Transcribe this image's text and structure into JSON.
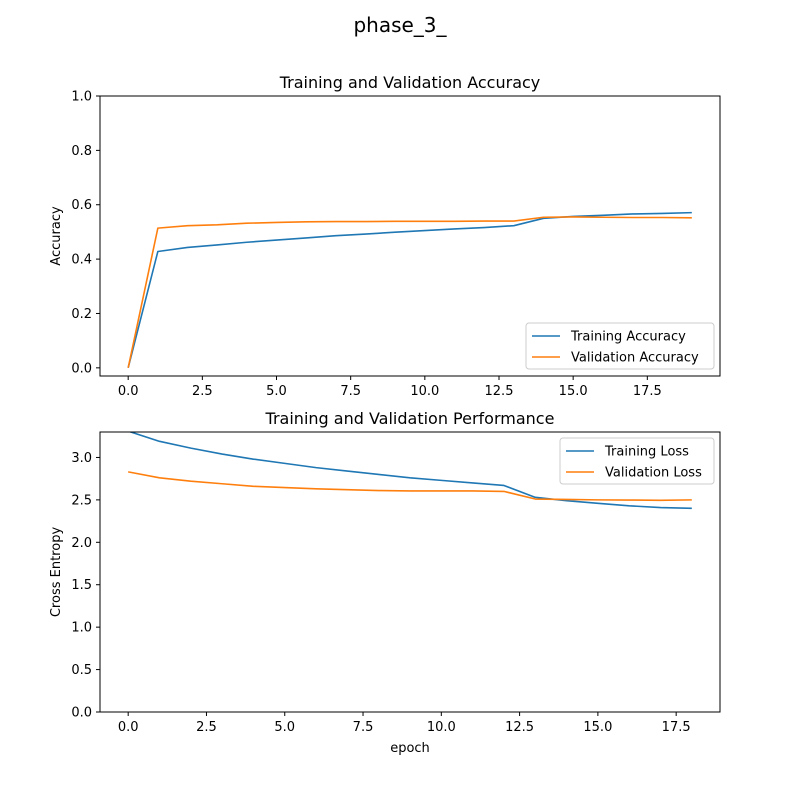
{
  "figure_title": "phase_3_",
  "colors": {
    "series_1": "#1f77b4",
    "series_2": "#ff7f0e"
  },
  "chart_data": [
    {
      "type": "line",
      "title": "Training and Validation Accuracy",
      "xlabel": "",
      "ylabel": "Accuracy",
      "xlim": [
        -0.95,
        19.95
      ],
      "ylim": [
        -0.03,
        1.0
      ],
      "xticks": [
        0.0,
        2.5,
        5.0,
        7.5,
        10.0,
        12.5,
        15.0,
        17.5
      ],
      "xtick_labels": [
        "0.0",
        "2.5",
        "5.0",
        "7.5",
        "10.0",
        "12.5",
        "15.0",
        "17.5"
      ],
      "yticks": [
        0.0,
        0.2,
        0.4,
        0.6,
        0.8,
        1.0
      ],
      "ytick_labels": [
        "0.0",
        "0.2",
        "0.4",
        "0.6",
        "0.8",
        "1.0"
      ],
      "legend": "lower-right",
      "x": [
        0,
        1,
        2,
        3,
        4,
        5,
        6,
        7,
        8,
        9,
        10,
        11,
        12,
        13,
        14,
        15,
        16,
        17,
        18,
        19
      ],
      "series": [
        {
          "name": "Training Accuracy",
          "color": "#1f77b4",
          "values": [
            0.0,
            0.428,
            0.443,
            0.452,
            0.462,
            0.47,
            0.478,
            0.486,
            0.492,
            0.499,
            0.505,
            0.511,
            0.516,
            0.523,
            0.55,
            0.557,
            0.561,
            0.566,
            0.568,
            0.571
          ]
        },
        {
          "name": "Validation Accuracy",
          "color": "#ff7f0e",
          "values": [
            0.0,
            0.514,
            0.523,
            0.526,
            0.532,
            0.535,
            0.537,
            0.538,
            0.538,
            0.539,
            0.539,
            0.539,
            0.54,
            0.54,
            0.554,
            0.555,
            0.554,
            0.553,
            0.553,
            0.552
          ]
        }
      ]
    },
    {
      "type": "line",
      "title": "Training and Validation Performance",
      "xlabel": "epoch",
      "ylabel": "Cross Entropy",
      "xlim": [
        -0.9,
        18.9
      ],
      "ylim": [
        0.0,
        3.3
      ],
      "xticks": [
        0.0,
        2.5,
        5.0,
        7.5,
        10.0,
        12.5,
        15.0,
        17.5
      ],
      "xtick_labels": [
        "0.0",
        "2.5",
        "5.0",
        "7.5",
        "10.0",
        "12.5",
        "15.0",
        "17.5"
      ],
      "yticks": [
        0.0,
        0.5,
        1.0,
        1.5,
        2.0,
        2.5,
        3.0
      ],
      "ytick_labels": [
        "0.0",
        "0.5",
        "1.0",
        "1.5",
        "2.0",
        "2.5",
        "3.0"
      ],
      "legend": "upper-right",
      "x": [
        0,
        1,
        2,
        3,
        4,
        5,
        6,
        7,
        8,
        9,
        10,
        11,
        12,
        13,
        14,
        15,
        16,
        17,
        18
      ],
      "series": [
        {
          "name": "Training Loss",
          "color": "#1f77b4",
          "values": [
            3.31,
            3.19,
            3.11,
            3.04,
            2.98,
            2.93,
            2.88,
            2.84,
            2.8,
            2.76,
            2.73,
            2.7,
            2.67,
            2.53,
            2.49,
            2.46,
            2.43,
            2.41,
            2.4
          ]
        },
        {
          "name": "Validation Loss",
          "color": "#ff7f0e",
          "values": [
            2.83,
            2.76,
            2.72,
            2.69,
            2.66,
            2.645,
            2.63,
            2.62,
            2.61,
            2.605,
            2.605,
            2.605,
            2.6,
            2.51,
            2.505,
            2.5,
            2.498,
            2.495,
            2.5
          ]
        }
      ]
    }
  ]
}
